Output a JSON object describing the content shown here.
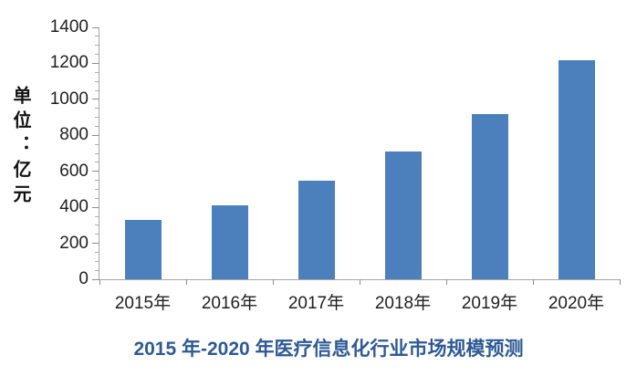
{
  "chart_data": {
    "type": "bar",
    "title": "2015 年-2020 年医疗信息化行业市场规模预测",
    "unit_label": "单位：亿元",
    "categories": [
      "2015年",
      "2016年",
      "2017年",
      "2018年",
      "2019年",
      "2020年"
    ],
    "values": [
      330,
      410,
      550,
      710,
      920,
      1220
    ],
    "xlabel": "",
    "ylabel": "单位：亿元",
    "ylim": [
      0,
      1400
    ],
    "y_major_step": 200,
    "y_minor_step": 50,
    "y_tick_labels": [
      "0",
      "200",
      "400",
      "600",
      "800",
      "1000",
      "1200",
      "1400"
    ],
    "grid": false,
    "legend_position": "none",
    "colors": {
      "bar": "#4C80BC",
      "title": "#2E5996",
      "axis_line": "#a6a6a6",
      "tick_text": "#1f1f1f"
    }
  }
}
